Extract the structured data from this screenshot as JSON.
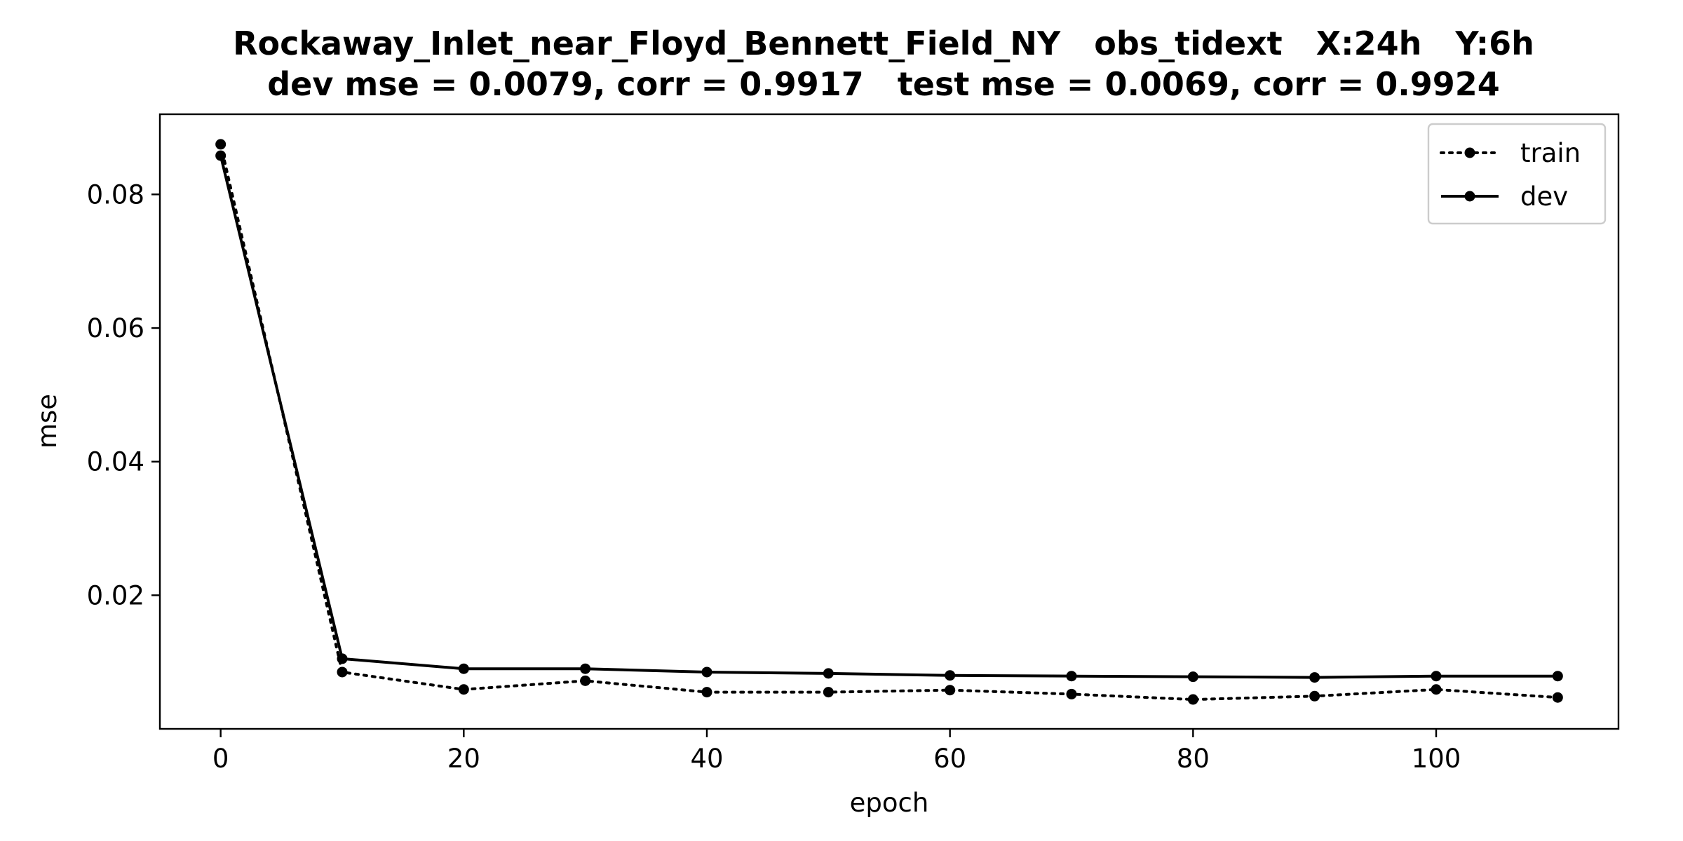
{
  "chart_data": {
    "type": "line",
    "title": "Rockaway_Inlet_near_Floyd_Bennett_Field_NY   obs_tidext   X:24h   Y:6h",
    "subtitle": "dev mse = 0.0079, corr = 0.9917   test mse = 0.0069, corr = 0.9924",
    "xlabel": "epoch",
    "ylabel": "mse",
    "xlim": [
      -5,
      115
    ],
    "ylim": [
      0.0,
      0.092
    ],
    "xticks": [
      0,
      20,
      40,
      60,
      80,
      100
    ],
    "yticks": [
      0.02,
      0.04,
      0.06,
      0.08
    ],
    "xtick_labels": [
      "0",
      "20",
      "40",
      "60",
      "80",
      "100"
    ],
    "ytick_labels": [
      "0.02",
      "0.04",
      "0.06",
      "0.08"
    ],
    "grid": false,
    "legend_position": "top-right",
    "x": [
      0,
      10,
      20,
      30,
      40,
      50,
      60,
      70,
      80,
      90,
      100,
      110
    ],
    "series": [
      {
        "name": "train",
        "style": "dotted",
        "color": "#000000",
        "values": [
          0.0875,
          0.0085,
          0.0059,
          0.0072,
          0.0055,
          0.0055,
          0.0058,
          0.0052,
          0.0044,
          0.0049,
          0.0059,
          0.0047
        ]
      },
      {
        "name": "dev",
        "style": "solid",
        "color": "#000000",
        "values": [
          0.0858,
          0.0105,
          0.009,
          0.009,
          0.0085,
          0.0083,
          0.008,
          0.0079,
          0.0078,
          0.0077,
          0.0079,
          0.0079
        ]
      }
    ]
  }
}
